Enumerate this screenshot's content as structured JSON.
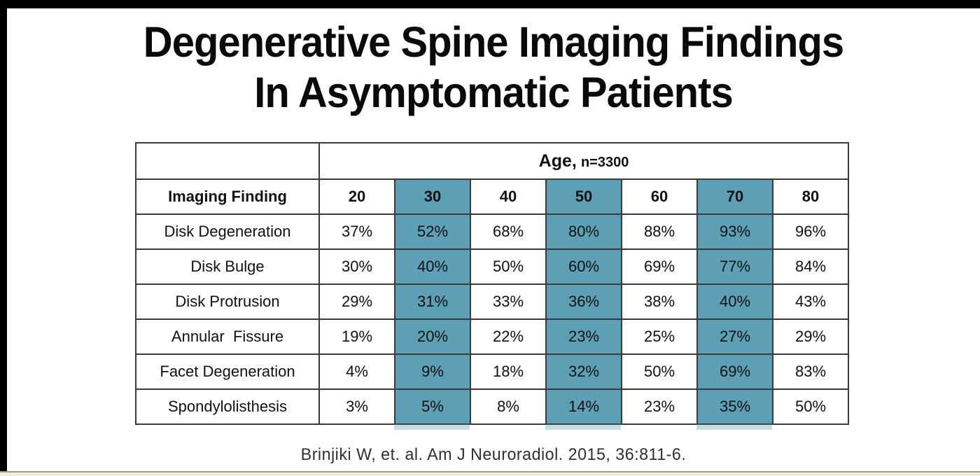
{
  "slide": {
    "title_line1": "Degenerative Spine Imaging Findings",
    "title_line2": "In Asymptomatic Patients",
    "citation": "Brinjiki W, et. al. Am J Neuroradiol. 2015, 36:811-6."
  },
  "table": {
    "age_group_label": "Age,",
    "age_group_n": "n=3300",
    "row_header": "Imaging Finding",
    "age_columns": [
      "20",
      "30",
      "40",
      "50",
      "60",
      "70",
      "80"
    ],
    "highlighted_ages": [
      "30",
      "50",
      "70"
    ],
    "rows": [
      {
        "finding": "Disk Degeneration",
        "values": [
          "37%",
          "52%",
          "68%",
          "80%",
          "88%",
          "93%",
          "96%"
        ]
      },
      {
        "finding": "Disk Bulge",
        "values": [
          "30%",
          "40%",
          "50%",
          "60%",
          "69%",
          "77%",
          "84%"
        ]
      },
      {
        "finding": "Disk Protrusion",
        "values": [
          "29%",
          "31%",
          "33%",
          "36%",
          "38%",
          "40%",
          "43%"
        ]
      },
      {
        "finding": "Annular  Fissure",
        "values": [
          "19%",
          "20%",
          "22%",
          "23%",
          "25%",
          "27%",
          "29%"
        ]
      },
      {
        "finding": "Facet Degeneration",
        "values": [
          "4%",
          "9%",
          "18%",
          "32%",
          "50%",
          "69%",
          "83%"
        ]
      },
      {
        "finding": "Spondylolisthesis",
        "values": [
          "3%",
          "5%",
          "8%",
          "14%",
          "23%",
          "35%",
          "50%"
        ]
      }
    ]
  },
  "chart_data": {
    "type": "table",
    "title": "Degenerative Spine Imaging Findings In Asymptomatic Patients",
    "column_group_label": "Age, n=3300",
    "columns": [
      "Imaging Finding",
      "20",
      "30",
      "40",
      "50",
      "60",
      "70",
      "80"
    ],
    "highlighted_columns": [
      "30",
      "50",
      "70"
    ],
    "rows": [
      [
        "Disk Degeneration",
        "37%",
        "52%",
        "68%",
        "80%",
        "88%",
        "93%",
        "96%"
      ],
      [
        "Disk Bulge",
        "30%",
        "40%",
        "50%",
        "60%",
        "69%",
        "77%",
        "84%"
      ],
      [
        "Disk Protrusion",
        "29%",
        "31%",
        "33%",
        "36%",
        "38%",
        "40%",
        "43%"
      ],
      [
        "Annular Fissure",
        "19%",
        "20%",
        "22%",
        "23%",
        "25%",
        "27%",
        "29%"
      ],
      [
        "Facet Degeneration",
        "4%",
        "9%",
        "18%",
        "32%",
        "50%",
        "69%",
        "83%"
      ],
      [
        "Spondylolisthesis",
        "3%",
        "5%",
        "8%",
        "14%",
        "23%",
        "35%",
        "50%"
      ]
    ],
    "source": "Brinjiki W, et. al. Am J Neuroradiol. 2015, 36:811-6."
  },
  "colors": {
    "highlight_teal": "#5d9fb5",
    "table_border": "#3a3a3a",
    "frame_black": "#000000",
    "title_text": "#0a0a0a",
    "citation_text": "#303030",
    "bottom_strip_fill": "#f3eddc",
    "bottom_strip_line": "#aa9c74"
  }
}
